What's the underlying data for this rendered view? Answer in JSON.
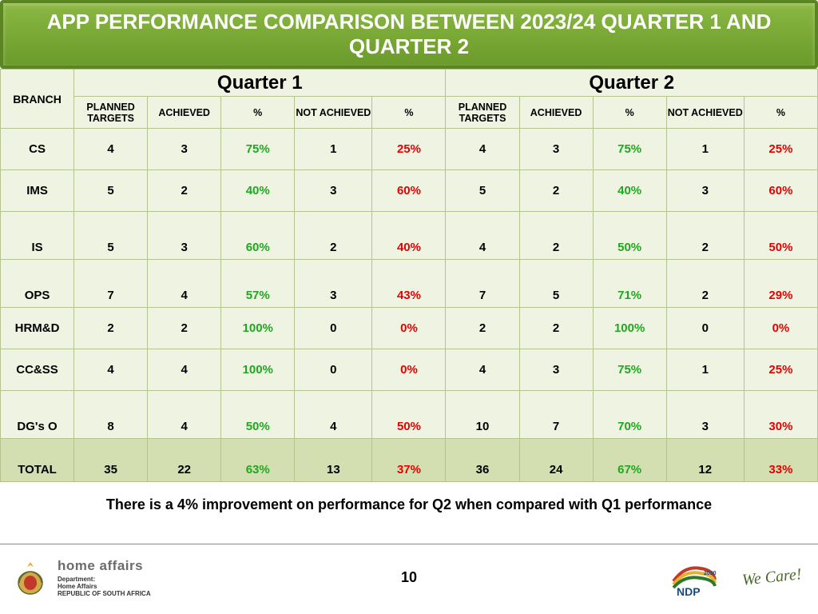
{
  "title": "APP PERFORMANCE COMPARISON BETWEEN 2023/24 QUARTER 1 AND QUARTER 2",
  "table": {
    "quarter1_label": "Quarter 1",
    "quarter2_label": "Quarter 2",
    "branch_header": "BRANCH",
    "sub_headers": [
      "PLANNED TARGETS",
      "ACHIEVED",
      "%",
      "NOT ACHIEVED",
      "%"
    ],
    "rows": [
      {
        "branch": "CS",
        "q1": {
          "planned": "4",
          "achieved": "3",
          "pct": "75%",
          "not": "1",
          "npct": "25%"
        },
        "q2": {
          "planned": "4",
          "achieved": "3",
          "pct": "75%",
          "not": "1",
          "npct": "25%"
        },
        "tall": false
      },
      {
        "branch": "IMS",
        "q1": {
          "planned": "5",
          "achieved": "2",
          "pct": "40%",
          "not": "3",
          "npct": "60%"
        },
        "q2": {
          "planned": "5",
          "achieved": "2",
          "pct": "40%",
          "not": "3",
          "npct": "60%"
        },
        "tall": false
      },
      {
        "branch": "IS",
        "q1": {
          "planned": "5",
          "achieved": "3",
          "pct": "60%",
          "not": "2",
          "npct": "40%"
        },
        "q2": {
          "planned": "4",
          "achieved": "2",
          "pct": "50%",
          "not": "2",
          "npct": "50%"
        },
        "tall": true
      },
      {
        "branch": "OPS",
        "q1": {
          "planned": "7",
          "achieved": "4",
          "pct": "57%",
          "not": "3",
          "npct": "43%"
        },
        "q2": {
          "planned": "7",
          "achieved": "5",
          "pct": "71%",
          "not": "2",
          "npct": "29%"
        },
        "tall": true
      },
      {
        "branch": "HRM&D",
        "q1": {
          "planned": "2",
          "achieved": "2",
          "pct": "100%",
          "not": "0",
          "npct": "0%"
        },
        "q2": {
          "planned": "2",
          "achieved": "2",
          "pct": "100%",
          "not": "0",
          "npct": "0%"
        },
        "tall": false
      },
      {
        "branch": "CC&SS",
        "q1": {
          "planned": "4",
          "achieved": "4",
          "pct": "100%",
          "not": "0",
          "npct": "0%"
        },
        "q2": {
          "planned": "4",
          "achieved": "3",
          "pct": "75%",
          "not": "1",
          "npct": "25%"
        },
        "tall": false
      },
      {
        "branch": "DG's O",
        "q1": {
          "planned": "8",
          "achieved": "4",
          "pct": "50%",
          "not": "4",
          "npct": "50%"
        },
        "q2": {
          "planned": "10",
          "achieved": "7",
          "pct": "70%",
          "not": "3",
          "npct": "30%"
        },
        "tall": true
      }
    ],
    "total": {
      "branch": "TOTAL",
      "q1": {
        "planned": "35",
        "achieved": "22",
        "pct": "63%",
        "not": "13",
        "npct": "37%"
      },
      "q2": {
        "planned": "36",
        "achieved": "24",
        "pct": "67%",
        "not": "12",
        "npct": "33%"
      }
    },
    "colors": {
      "achieved_pct": "#1fa81f",
      "not_achieved_pct": "#e60000",
      "row_bg": "#eef3e2",
      "total_bg": "#d3deb1",
      "border": "#b5c48f"
    }
  },
  "summary_text": "There is a 4%  improvement on performance for Q2 when compared with Q1 performance",
  "page_number": "10",
  "footer": {
    "dept_name": "home affairs",
    "dept_sub": "Department:\nHome Affairs\nREPUBLIC OF SOUTH AFRICA",
    "ndp_year": "2030",
    "wecare": "We Care!"
  }
}
